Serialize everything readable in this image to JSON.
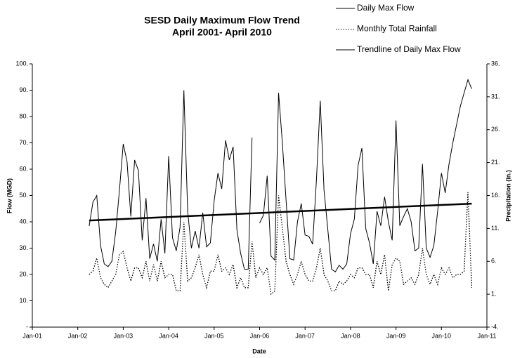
{
  "chart_data": {
    "type": "line",
    "title": "SESD Daily Maximum Flow Trend",
    "subtitle": "April 2001- April 2010",
    "xlabel": "Date",
    "ylabel": "Flow (MGD)",
    "y2label": "Precipitation (in.)",
    "x": [
      "2002-04",
      "2002-05",
      "2002-06",
      "2002-07",
      "2002-08",
      "2002-09",
      "2002-10",
      "2002-11",
      "2002-12",
      "2003-01",
      "2003-02",
      "2003-03",
      "2003-04",
      "2003-05",
      "2003-06",
      "2003-07",
      "2003-08",
      "2003-09",
      "2003-10",
      "2003-11",
      "2003-12",
      "2004-01",
      "2004-02",
      "2004-03",
      "2004-04",
      "2004-05",
      "2004-06",
      "2004-07",
      "2004-08",
      "2004-09",
      "2004-10",
      "2004-11",
      "2004-12",
      "2005-01",
      "2005-02",
      "2005-03",
      "2005-04",
      "2005-05",
      "2005-06",
      "2005-07",
      "2005-08",
      "2005-09",
      "2005-10",
      "2005-11",
      "2005-12",
      "2006-01",
      "2006-02",
      "2006-03",
      "2006-04",
      "2006-05",
      "2006-06",
      "2006-07",
      "2006-08",
      "2006-09",
      "2006-10",
      "2006-11",
      "2006-12",
      "2007-01",
      "2007-02",
      "2007-03",
      "2007-04",
      "2007-05",
      "2007-06",
      "2007-07",
      "2007-08",
      "2007-09",
      "2007-10",
      "2007-11",
      "2007-12",
      "2008-01",
      "2008-02",
      "2008-03",
      "2008-04",
      "2008-05",
      "2008-06",
      "2008-07",
      "2008-08",
      "2008-09",
      "2008-10",
      "2008-11",
      "2008-12",
      "2009-01",
      "2009-02",
      "2009-03",
      "2009-04",
      "2009-05",
      "2009-06",
      "2009-07",
      "2009-08",
      "2009-09",
      "2009-10",
      "2009-11",
      "2009-12",
      "2010-01",
      "2010-02",
      "2010-03",
      "2010-04",
      "2010-05",
      "2010-06",
      "2010-07",
      "2010-08",
      "2010-09"
    ],
    "series": [
      {
        "name": "Daily Max Flow",
        "color": "#000000",
        "style": "solid",
        "width": 1,
        "values": [
          38.4,
          47.5,
          50,
          31,
          24,
          23,
          25,
          36,
          52,
          69.6,
          63,
          42,
          63.5,
          59.5,
          33,
          49,
          26,
          31.6,
          25,
          41,
          28,
          65,
          34,
          29,
          38,
          90,
          44,
          30,
          36.5,
          30,
          43.5,
          30.5,
          32,
          48,
          58.5,
          52.5,
          71,
          63.5,
          68.5,
          37,
          28,
          22,
          22,
          72,
          null,
          39.5,
          42.5,
          57.5,
          27,
          25.5,
          89,
          70,
          48,
          26,
          25.5,
          40,
          47,
          35,
          34.5,
          31.5,
          56,
          86,
          52,
          37,
          22,
          21,
          23.5,
          22,
          24,
          35.5,
          41,
          61.5,
          68,
          37.5,
          32,
          24,
          44,
          38.5,
          49.5,
          40,
          33,
          78.5,
          38.5,
          42,
          45,
          40,
          29,
          30,
          62,
          30,
          26.5,
          31,
          44,
          58.5,
          51,
          62,
          70,
          77,
          84,
          89,
          94,
          90.5
        ]
      },
      {
        "name": "Monthly Total Rainfall",
        "color": "#000000",
        "style": "dotted",
        "width": 1.3,
        "axis": "y2",
        "values": [
          4,
          4.5,
          6.5,
          3.5,
          2.5,
          2,
          3,
          4,
          7,
          7.5,
          5,
          3,
          5,
          5,
          3.5,
          6,
          3,
          5.5,
          3,
          6,
          3.5,
          4,
          4,
          1.5,
          1.5,
          12,
          3,
          3.5,
          5,
          7,
          4,
          2,
          4.5,
          4.5,
          7,
          4.5,
          5,
          4,
          5.5,
          2,
          3.5,
          2,
          2,
          9,
          3.5,
          5,
          4,
          5,
          1,
          1.5,
          16,
          11,
          6,
          4,
          2.5,
          4,
          6,
          4,
          3,
          3,
          5,
          8,
          4,
          3,
          1.5,
          1.5,
          3,
          2.5,
          3,
          4,
          3.5,
          5,
          5,
          4,
          4,
          2,
          6,
          4,
          7,
          1.5,
          5.5,
          6.5,
          6,
          2.5,
          3,
          3.5,
          2.5,
          4,
          8,
          4,
          2.5,
          4,
          2.5,
          5,
          4,
          5,
          3.5,
          4,
          4,
          4.5,
          16.5,
          2
        ]
      },
      {
        "name": "Trendline of Daily Max Flow",
        "color": "#000000",
        "style": "solid",
        "width": 2.5,
        "x": [
          "2002-04",
          "2010-09"
        ],
        "values": [
          40.5,
          46.9
        ]
      }
    ],
    "xlim": [
      "2001-01",
      "2011-01"
    ],
    "xticks": [
      {
        "value": "2001-01",
        "label": "Jan-01"
      },
      {
        "value": "2002-01",
        "label": "Jan-02"
      },
      {
        "value": "2003-01",
        "label": "Jan-03"
      },
      {
        "value": "2004-01",
        "label": "Jan-04"
      },
      {
        "value": "2005-01",
        "label": "Jan-05"
      },
      {
        "value": "2006-01",
        "label": "Jan-06"
      },
      {
        "value": "2007-01",
        "label": "Jan-07"
      },
      {
        "value": "2008-01",
        "label": "Jan-08"
      },
      {
        "value": "2009-01",
        "label": "Jan-09"
      },
      {
        "value": "2010-01",
        "label": "Jan-10"
      },
      {
        "value": "2011-01",
        "label": "Jan-11"
      }
    ],
    "ylim": [
      0,
      100
    ],
    "yticks": [
      {
        "value": 0,
        "label": "-"
      },
      {
        "value": 10,
        "label": "10."
      },
      {
        "value": 20,
        "label": "20."
      },
      {
        "value": 30,
        "label": "30."
      },
      {
        "value": 40,
        "label": "40."
      },
      {
        "value": 50,
        "label": "50."
      },
      {
        "value": 60,
        "label": "60."
      },
      {
        "value": 70,
        "label": "70."
      },
      {
        "value": 80,
        "label": "80."
      },
      {
        "value": 90,
        "label": "90."
      },
      {
        "value": 100,
        "label": "100."
      }
    ],
    "y2lim": [
      -4,
      36
    ],
    "y2ticks": [
      {
        "value": -4,
        "label": "-4."
      },
      {
        "value": 1,
        "label": "1."
      },
      {
        "value": 6,
        "label": "6."
      },
      {
        "value": 11,
        "label": "11."
      },
      {
        "value": 16,
        "label": "16."
      },
      {
        "value": 21,
        "label": "21."
      },
      {
        "value": 26,
        "label": "26."
      },
      {
        "value": 31,
        "label": "31."
      },
      {
        "value": 36,
        "label": "36."
      }
    ],
    "grid": false
  }
}
